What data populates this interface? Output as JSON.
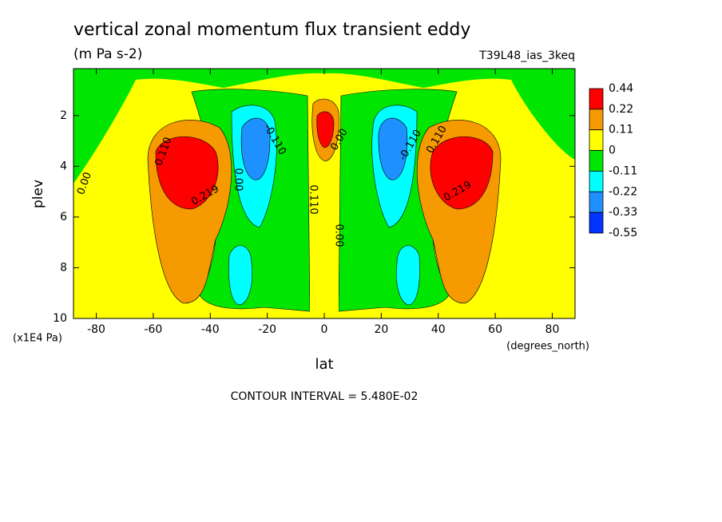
{
  "chart_data": {
    "type": "contour",
    "title": "vertical zonal momentum flux transient eddy",
    "subtitle": "(m Pa s-2)",
    "dataset": "T39L48_ias_3keq",
    "x_label": "lat",
    "x_units": "(degrees_north)",
    "y_label": "plev",
    "y_units": "(x1E4 Pa)",
    "footer": "CONTOUR INTERVAL = 5.480E-02",
    "xlim": [
      -88,
      88
    ],
    "xticks": [
      -80,
      -60,
      -40,
      -20,
      0,
      20,
      40,
      60,
      80
    ],
    "ylim": [
      0.15,
      10
    ],
    "yticks": [
      2,
      4,
      6,
      8,
      10
    ],
    "levels": [
      0.44,
      0.22,
      0.11,
      0,
      -0.11,
      -0.22,
      -0.33,
      -0.55
    ],
    "colors": [
      "#ff0000",
      "#f59a00",
      "#ffff00",
      "#00e600",
      "#00ffff",
      "#1e90ff",
      "#0033ff"
    ],
    "contour_labels": [
      "0.00",
      "0.110",
      "0.219",
      "-0.110",
      "0.00",
      "0.110",
      "0.00",
      "0.00",
      "-0.110",
      "0.110",
      "0.219"
    ]
  }
}
